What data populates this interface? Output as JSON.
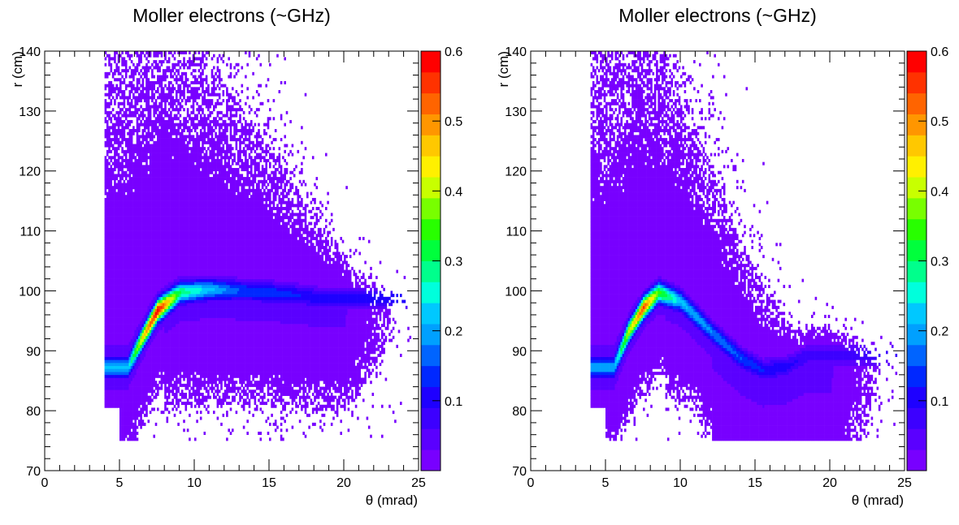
{
  "chart_data": [
    {
      "type": "heatmap",
      "title": "Moller electrons (~GHz)",
      "xlabel": "θ (mrad)",
      "ylabel": "r (cm)",
      "xlim": [
        0,
        25
      ],
      "ylim": [
        70,
        140
      ],
      "x_ticks": [
        0,
        5,
        10,
        15,
        20,
        25
      ],
      "y_ticks": [
        70,
        80,
        90,
        100,
        110,
        120,
        130,
        140
      ],
      "colorbar": {
        "min": 0,
        "max": 0.6,
        "ticks": [
          "0.1",
          "0.2",
          "0.3",
          "0.4",
          "0.5",
          "0.6"
        ]
      },
      "ridge": [
        [
          5.5,
          87
        ],
        [
          6.5,
          92
        ],
        [
          7.5,
          96.5
        ],
        [
          9,
          99.5
        ],
        [
          11,
          100
        ],
        [
          13,
          99.8
        ],
        [
          15,
          99.5
        ],
        [
          17,
          99
        ],
        [
          18.5,
          98.5
        ]
      ],
      "peak_values": [
        0.22,
        0.45,
        0.6,
        0.3,
        0.22,
        0.15,
        0.14,
        0.12,
        0.1
      ]
    },
    {
      "type": "heatmap",
      "title": "Moller electrons (~GHz)",
      "xlabel": "θ  (mrad)",
      "ylabel": "r (cm)",
      "xlim": [
        0,
        25
      ],
      "ylim": [
        70,
        140
      ],
      "x_ticks": [
        0,
        5,
        10,
        15,
        20,
        25
      ],
      "y_ticks": [
        70,
        80,
        90,
        100,
        110,
        120,
        130,
        140
      ],
      "colorbar": {
        "min": 0,
        "max": 0.6,
        "ticks": [
          "0.1",
          "0.2",
          "0.3",
          "0.4",
          "0.5",
          "0.6"
        ]
      },
      "ridge": [
        [
          5.5,
          87
        ],
        [
          6.5,
          93
        ],
        [
          7.5,
          97
        ],
        [
          8.5,
          99.5
        ],
        [
          10,
          98
        ],
        [
          12,
          93
        ],
        [
          14,
          88.5
        ],
        [
          15.5,
          86.5
        ],
        [
          17,
          87
        ],
        [
          18.5,
          89
        ]
      ],
      "peak_values": [
        0.2,
        0.4,
        0.55,
        0.35,
        0.22,
        0.18,
        0.15,
        0.12,
        0.1,
        0.08
      ]
    }
  ],
  "palette": [
    "#7800ff",
    "#5a00ff",
    "#3c00ff",
    "#1e00ff",
    "#0028ff",
    "#0064ff",
    "#00a0ff",
    "#00c8ff",
    "#00ffdc",
    "#00ff8c",
    "#00ff3c",
    "#28ff00",
    "#78ff00",
    "#c8ff00",
    "#fff000",
    "#ffc800",
    "#ff9600",
    "#ff6400",
    "#ff3200",
    "#ff0000"
  ]
}
